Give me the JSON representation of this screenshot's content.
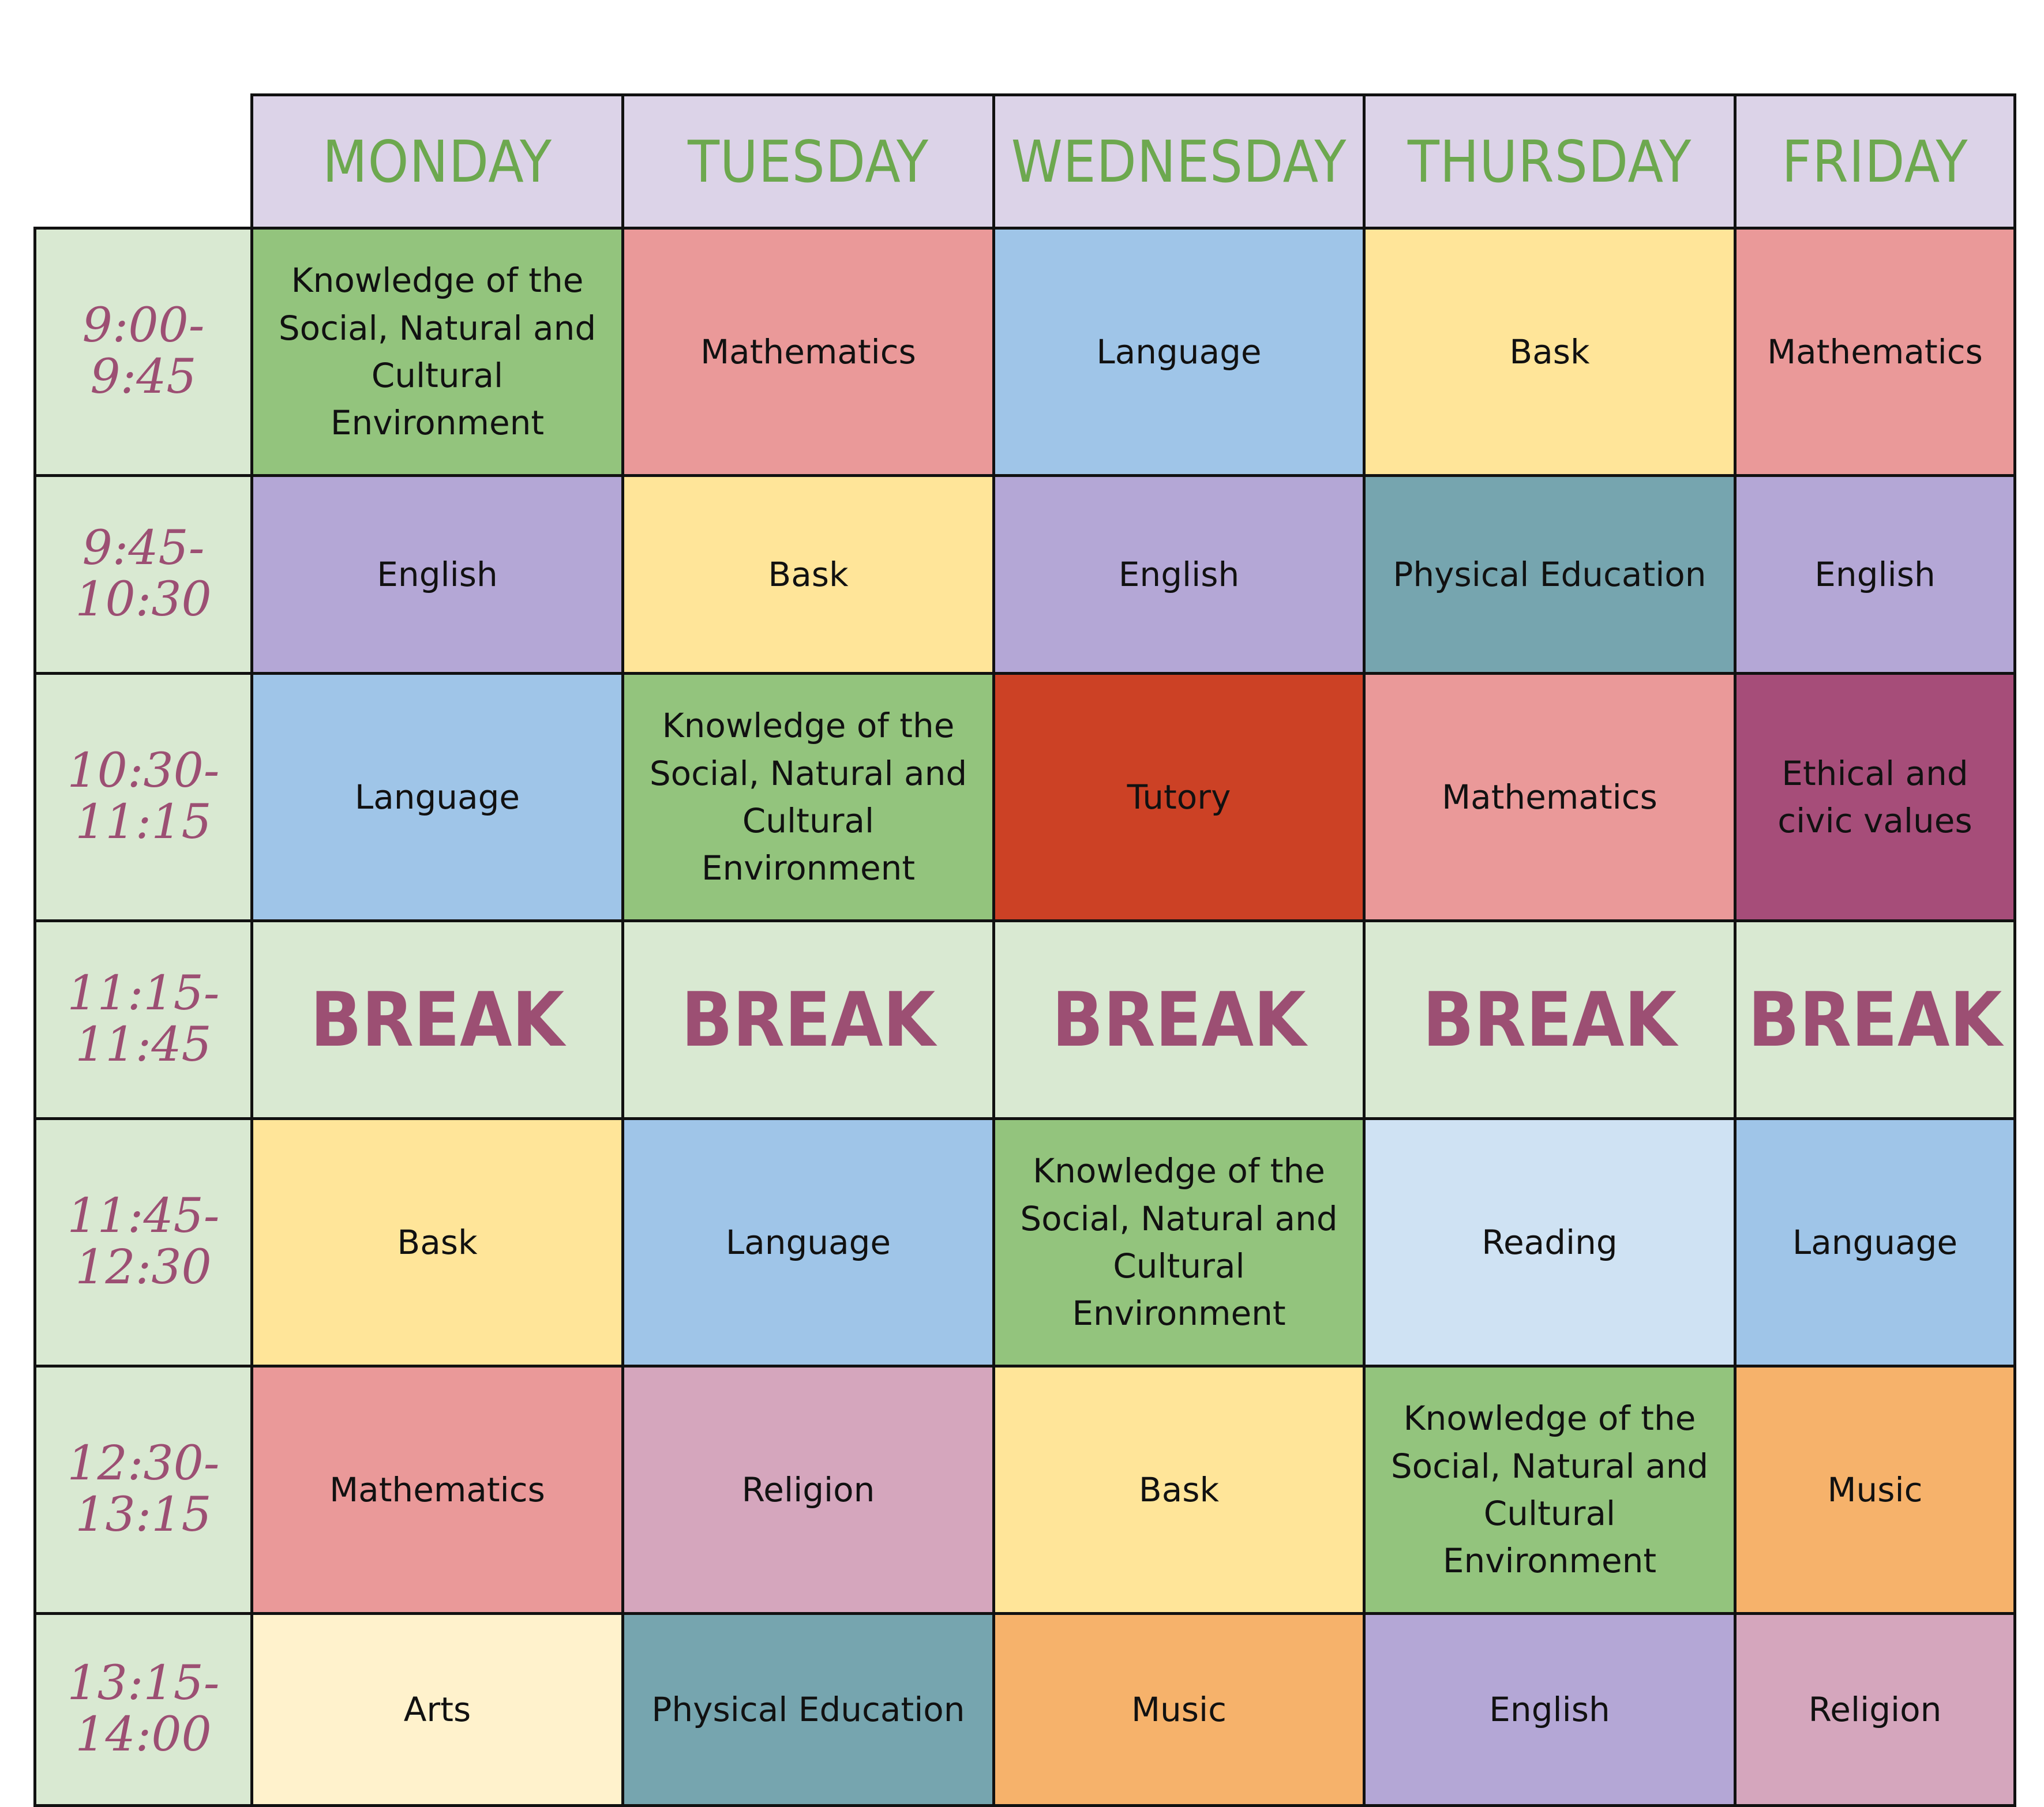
{
  "days": [
    "MONDAY",
    "TUESDAY",
    "WEDNESDAY",
    "THURSDAY",
    "FRIDAY"
  ],
  "rows": [
    {
      "time": "9:00-\n9:45",
      "break": false,
      "cells": [
        {
          "label": "Knowledge of the\nSocial, Natural and\nCultural\nEnvironment",
          "color": "#93c47d"
        },
        {
          "label": "Mathematics",
          "color": "#ea9999"
        },
        {
          "label": "Language",
          "color": "#9fc5e8"
        },
        {
          "label": "Bask",
          "color": "#ffe599"
        },
        {
          "label": "Mathematics",
          "color": "#ea9999"
        }
      ]
    },
    {
      "time": "9:45-\n10:30",
      "break": false,
      "cells": [
        {
          "label": "English",
          "color": "#b4a7d6"
        },
        {
          "label": "Bask",
          "color": "#ffe599"
        },
        {
          "label": "English",
          "color": "#b4a7d6"
        },
        {
          "label": "Physical Education",
          "color": "#76a5af"
        },
        {
          "label": "English",
          "color": "#b4a7d6"
        }
      ]
    },
    {
      "time": "10:30-\n11:15",
      "break": false,
      "cells": [
        {
          "label": "Language",
          "color": "#9fc5e8"
        },
        {
          "label": "Knowledge of the\nSocial, Natural and\nCultural\nEnvironment",
          "color": "#93c47d"
        },
        {
          "label": "Tutory",
          "color": "#cc4125"
        },
        {
          "label": "Mathematics",
          "color": "#ea9999"
        },
        {
          "label": "Ethical and\ncivic values",
          "color": "#a64d79"
        }
      ]
    },
    {
      "time": "11:15-\n11:45",
      "break": true,
      "cells": [
        {
          "label": "BREAK"
        },
        {
          "label": "BREAK"
        },
        {
          "label": "BREAK"
        },
        {
          "label": "BREAK"
        },
        {
          "label": "BREAK"
        }
      ]
    },
    {
      "time": "11:45-\n12:30",
      "break": false,
      "cells": [
        {
          "label": "Bask",
          "color": "#ffe599"
        },
        {
          "label": "Language",
          "color": "#9fc5e8"
        },
        {
          "label": "Knowledge of the\nSocial, Natural and\nCultural\nEnvironment",
          "color": "#93c47d"
        },
        {
          "label": "Reading",
          "color": "#cfe2f3"
        },
        {
          "label": "Language",
          "color": "#9fc5e8"
        }
      ]
    },
    {
      "time": "12:30-\n13:15",
      "break": false,
      "cells": [
        {
          "label": "Mathematics",
          "color": "#ea9999"
        },
        {
          "label": "Religion",
          "color": "#d5a6bd"
        },
        {
          "label": "Bask",
          "color": "#ffe599"
        },
        {
          "label": "Knowledge of the\nSocial, Natural and\nCultural\nEnvironment",
          "color": "#93c47d"
        },
        {
          "label": "Music",
          "color": "#f6b26b"
        }
      ]
    },
    {
      "time": "13:15-\n14:00",
      "break": false,
      "cells": [
        {
          "label": "Arts",
          "color": "#fff2cc"
        },
        {
          "label": "Physical Education",
          "color": "#76a5af"
        },
        {
          "label": "Music",
          "color": "#f6b26b"
        },
        {
          "label": "English",
          "color": "#b4a7d6"
        },
        {
          "label": "Religion",
          "color": "#d5a6bd"
        }
      ]
    }
  ]
}
